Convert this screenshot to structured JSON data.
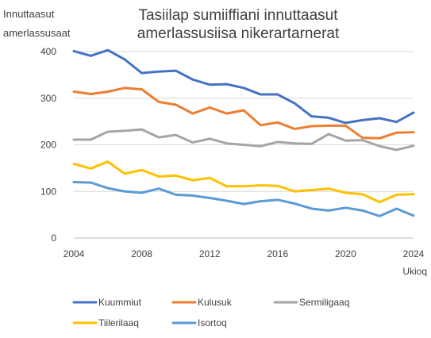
{
  "chart_data": {
    "type": "line",
    "title": [
      "Tasiilap sumiiffiani innuttaasut",
      "amerlassusiisa nikerartarnerat"
    ],
    "ylabel": [
      "Innuttaasut",
      "amerlassusaat"
    ],
    "xlabel": "Ukioq",
    "ylim": [
      0,
      400
    ],
    "yticks": [
      0,
      100,
      200,
      300,
      400
    ],
    "xlim": [
      2004,
      2024
    ],
    "xticks": [
      2004,
      2008,
      2012,
      2016,
      2020,
      2024
    ],
    "grid": "horizontal",
    "legend_position": "bottom",
    "x": [
      2004,
      2005,
      2006,
      2007,
      2008,
      2009,
      2010,
      2011,
      2012,
      2013,
      2014,
      2015,
      2016,
      2017,
      2018,
      2019,
      2020,
      2021,
      2022,
      2023,
      2024
    ],
    "series": [
      {
        "name": "Kuummiut",
        "color": "#4472C4",
        "values": [
          401,
          391,
          403,
          383,
          354,
          357,
          359,
          340,
          329,
          330,
          322,
          308,
          308,
          289,
          261,
          258,
          247,
          253,
          257,
          249,
          269
        ]
      },
      {
        "name": "Kulusuk",
        "color": "#ED7D31",
        "values": [
          314,
          309,
          314,
          322,
          319,
          292,
          286,
          267,
          280,
          267,
          274,
          242,
          248,
          234,
          240,
          241,
          241,
          215,
          214,
          226,
          227
        ]
      },
      {
        "name": "Sermiligaaq",
        "color": "#A5A5A5",
        "values": [
          211,
          211,
          228,
          230,
          233,
          216,
          221,
          205,
          213,
          203,
          200,
          197,
          206,
          203,
          202,
          223,
          209,
          210,
          197,
          189,
          198
        ]
      },
      {
        "name": "Tiilerilaaq",
        "color": "#FFC000",
        "values": [
          159,
          149,
          164,
          138,
          146,
          132,
          134,
          124,
          129,
          111,
          111,
          113,
          112,
          100,
          103,
          106,
          97,
          94,
          77,
          93,
          94
        ]
      },
      {
        "name": "Isortoq",
        "color": "#5B9BD5",
        "values": [
          120,
          119,
          107,
          100,
          97,
          106,
          93,
          91,
          86,
          80,
          73,
          79,
          82,
          74,
          63,
          59,
          65,
          59,
          47,
          63,
          48
        ]
      }
    ]
  }
}
